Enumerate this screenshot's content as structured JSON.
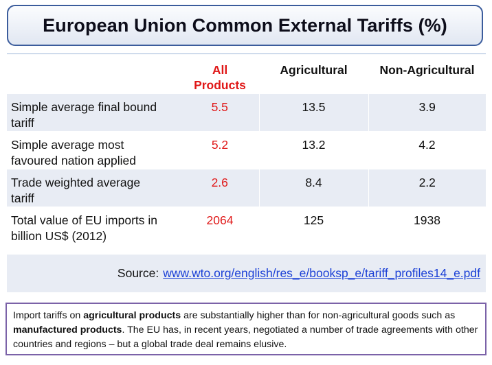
{
  "title": "European Union Common External Tariffs (%)",
  "table": {
    "headers": {
      "label": "",
      "all_products_line1": "All",
      "all_products_line2": "Products",
      "agricultural": "Agricultural",
      "non_agricultural": "Non-Agricultural"
    },
    "rows": [
      {
        "label_line1": "Simple average final bound",
        "label_line2": "tariff",
        "all": "5.5",
        "agri": "13.5",
        "nonagri": "3.9"
      },
      {
        "label_line1": "Simple average most",
        "label_line2": "favoured nation applied",
        "all": "5.2",
        "agri": "13.2",
        "nonagri": "4.2"
      },
      {
        "label_line1": "Trade weighted average",
        "label_line2": "tariff",
        "all": "2.6",
        "agri": "8.4",
        "nonagri": "2.2"
      },
      {
        "label_line1": "Total value of EU imports in",
        "label_line2": "billion US$ (2012)",
        "all": "2064",
        "agri": "125",
        "nonagri": "1938"
      }
    ]
  },
  "source": {
    "label": "Source:",
    "link_text": "www.wto.org/english/res_e/booksp_e/tariff_profiles14_e.pdf"
  },
  "note": {
    "part1": "Import tariffs on ",
    "bold1": "agricultural products",
    "part2": " are substantially higher than for non-agricultural goods such as ",
    "bold2": "manufactured products",
    "part3": ". The EU has, in recent years, negotiated a number of trade agreements with other countries and regions – but a global trade deal remains elusive."
  },
  "colors": {
    "accent_red": "#e01818",
    "title_border": "#3b5c9c",
    "row_shade": "#e8ecf4",
    "note_border": "#7b62a8",
    "link": "#1a3fd6"
  }
}
